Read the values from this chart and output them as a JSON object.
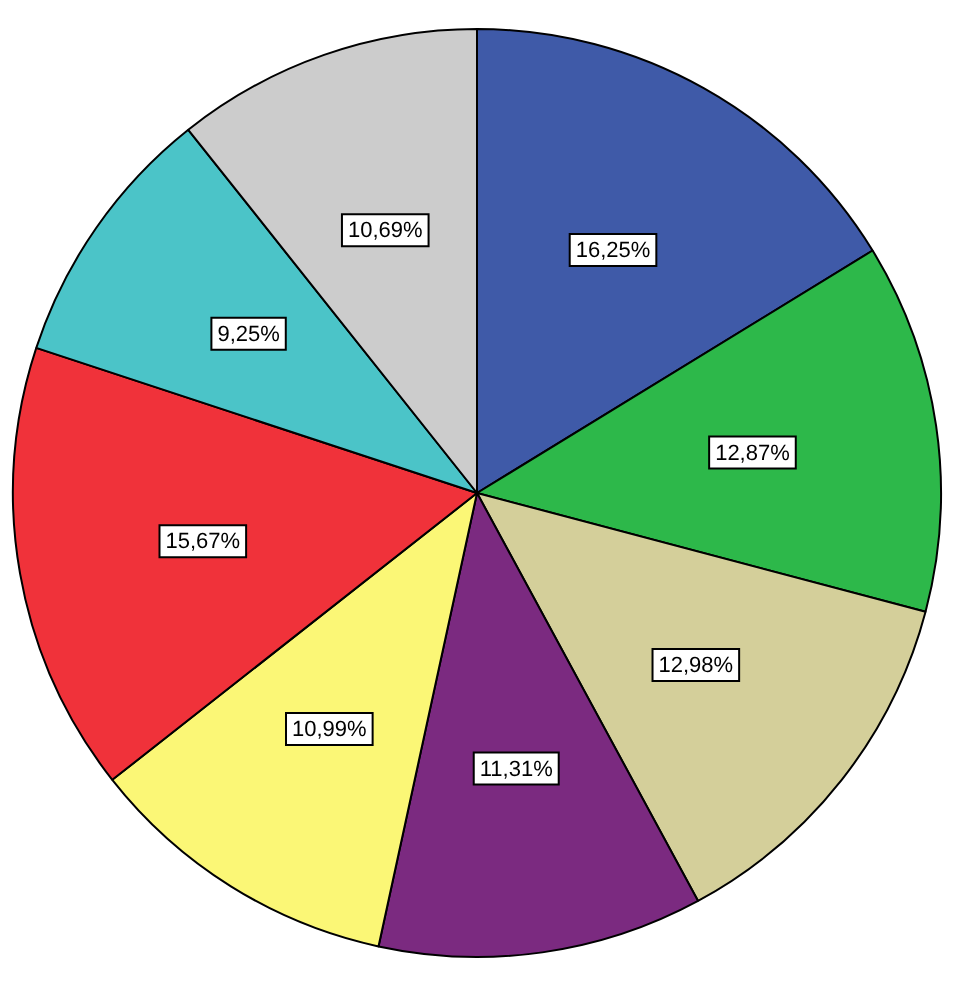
{
  "chart_data": {
    "type": "pie",
    "categories": [
      null,
      null,
      null,
      null,
      null,
      null,
      null,
      null
    ],
    "values": [
      16.25,
      12.87,
      12.98,
      11.31,
      10.99,
      15.67,
      9.25,
      10.69
    ],
    "colors": [
      "#3f5aa8",
      "#2db84a",
      "#d4cf9a",
      "#7b2a80",
      "#fbf776",
      "#f0323a",
      "#4bc4c8",
      "#cccccc"
    ],
    "value_labels": [
      "16,25%",
      "12,87%",
      "12,98%",
      "11,31%",
      "10,99%",
      "15,67%",
      "9,25%",
      "10,69%"
    ]
  }
}
